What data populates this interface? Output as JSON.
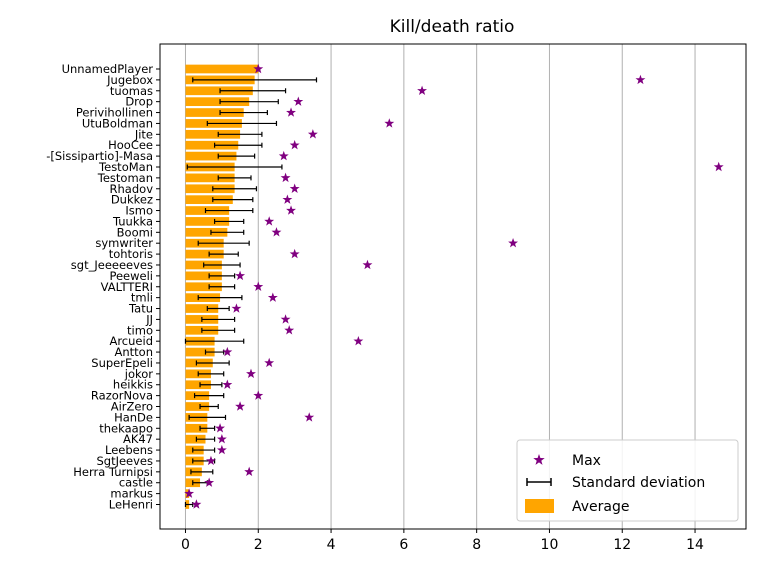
{
  "chart_data": {
    "type": "bar",
    "orientation": "horizontal",
    "title": "Kill/death ratio",
    "xlabel": "",
    "ylabel": "",
    "xlim": [
      -0.7,
      15.4
    ],
    "xticks": [
      0,
      2,
      4,
      6,
      8,
      10,
      12,
      14
    ],
    "grid": "vertical",
    "legend_position": "lower-right",
    "colors": {
      "average": "#FFA500",
      "max": "#800080",
      "std": "#000000",
      "grid": "#b0b0b0"
    },
    "categories": [
      "UnnamedPlayer",
      "Jugebox",
      "tuomas",
      "Drop",
      "Perivihollinen",
      "UtuBoldman",
      "Jite",
      "HooCee",
      "-[Sissipartio]-Masa",
      "TestoMan",
      "Testoman",
      "Rhadov",
      "Dukkez",
      "Ismo",
      "Tuukka",
      "Boomi",
      "symwriter",
      "tohtoris",
      "sgt_Jeeeeeves",
      "Peeweli",
      "VALTTERI",
      "tmli",
      "Tatu",
      "JJ",
      "timo",
      "Arcueid",
      "Antton",
      "SuperEpeli",
      "jokor",
      "heikkis",
      "RazorNova",
      "AirZero",
      "HanDe",
      "thekaapo",
      "AK47",
      "Leebens",
      "SgtJeeves",
      "Herra Turnipsi",
      "castle",
      "markus",
      "LeHenri"
    ],
    "series": [
      {
        "name": "Average",
        "values": [
          2.0,
          1.9,
          1.85,
          1.75,
          1.6,
          1.55,
          1.5,
          1.45,
          1.4,
          1.35,
          1.35,
          1.35,
          1.3,
          1.2,
          1.2,
          1.15,
          1.05,
          1.05,
          1.0,
          1.0,
          1.0,
          0.95,
          0.9,
          0.9,
          0.9,
          0.8,
          0.8,
          0.75,
          0.7,
          0.7,
          0.65,
          0.65,
          0.6,
          0.6,
          0.55,
          0.5,
          0.5,
          0.45,
          0.4,
          0.1,
          0.1
        ]
      },
      {
        "name": "Standard deviation",
        "values": [
          0.0,
          1.7,
          0.9,
          0.8,
          0.65,
          0.95,
          0.6,
          0.65,
          0.5,
          1.3,
          0.45,
          0.6,
          0.55,
          0.65,
          0.4,
          0.45,
          0.7,
          0.4,
          0.5,
          0.35,
          0.35,
          0.6,
          0.3,
          0.45,
          0.45,
          0.8,
          0.25,
          0.45,
          0.35,
          0.3,
          0.4,
          0.25,
          0.5,
          0.2,
          0.25,
          0.3,
          0.3,
          0.3,
          0.2,
          0.0,
          0.1
        ]
      },
      {
        "name": "Max",
        "values": [
          2.0,
          12.5,
          6.5,
          3.1,
          2.9,
          5.6,
          3.5,
          3.0,
          2.7,
          14.65,
          2.75,
          3.0,
          2.8,
          2.9,
          2.3,
          2.5,
          9.0,
          3.0,
          5.0,
          1.5,
          2.0,
          2.4,
          1.4,
          2.75,
          2.85,
          4.75,
          1.15,
          2.3,
          1.8,
          1.15,
          2.0,
          1.5,
          3.4,
          0.95,
          1.0,
          1.0,
          0.7,
          1.75,
          0.65,
          0.1,
          0.3
        ]
      }
    ]
  }
}
